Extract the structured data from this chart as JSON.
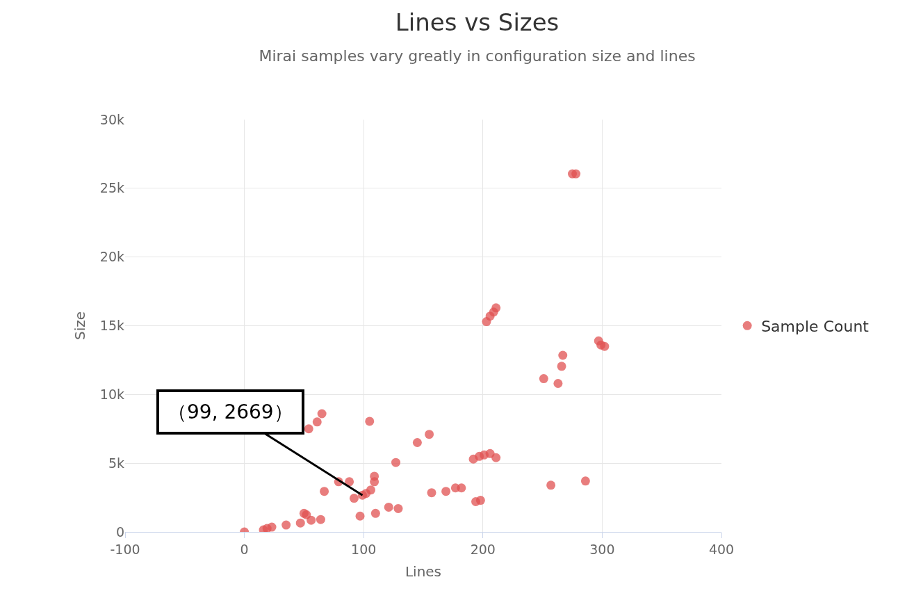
{
  "chart_data": {
    "type": "scatter",
    "title": "Lines vs Sizes",
    "subtitle": "Mirai samples vary greatly in configuration size and lines",
    "xlabel": "Lines",
    "ylabel": "Size",
    "xlim": [
      -100,
      400
    ],
    "xticks": [
      -100,
      0,
      100,
      200,
      300,
      400
    ],
    "ylim": [
      0,
      30000
    ],
    "yticks": [
      {
        "value": 0,
        "label": "0"
      },
      {
        "value": 5000,
        "label": "5k"
      },
      {
        "value": 10000,
        "label": "10k"
      },
      {
        "value": 15000,
        "label": "15k"
      },
      {
        "value": 20000,
        "label": "20k"
      },
      {
        "value": 25000,
        "label": "25k"
      },
      {
        "value": 30000,
        "label": "30k"
      }
    ],
    "grid": true,
    "legend": "right",
    "marker": "circle",
    "annotations": [
      {
        "text": "（99, 2669）",
        "x": 99,
        "y": 2669
      }
    ],
    "series": [
      {
        "name": "Sample Count",
        "color": "#e05252",
        "x": [
          0,
          16,
          19,
          23,
          35,
          47,
          50,
          52,
          56,
          64,
          67,
          54,
          61,
          65,
          79,
          88,
          92,
          99,
          102,
          106,
          109,
          109,
          97,
          110,
          105,
          127,
          121,
          129,
          145,
          155,
          157,
          169,
          177,
          182,
          194,
          198,
          203,
          206,
          209,
          211,
          192,
          197,
          201,
          206,
          211,
          257,
          286,
          297,
          299,
          302,
          267,
          266,
          251,
          263,
          275,
          278
        ],
        "values": [
          0,
          150,
          250,
          350,
          500,
          650,
          1350,
          1250,
          850,
          900,
          2950,
          7500,
          8000,
          8600,
          3650,
          3650,
          2450,
          2669,
          2800,
          3050,
          3650,
          4050,
          1150,
          1350,
          8050,
          5050,
          1800,
          1700,
          6500,
          7100,
          2850,
          2950,
          3200,
          3200,
          2200,
          2300,
          15300,
          15700,
          16000,
          16300,
          5300,
          5500,
          5600,
          5700,
          5400,
          3400,
          3700,
          13900,
          13600,
          13500,
          12850,
          12050,
          11150,
          10800,
          26050,
          26050
        ]
      }
    ]
  }
}
